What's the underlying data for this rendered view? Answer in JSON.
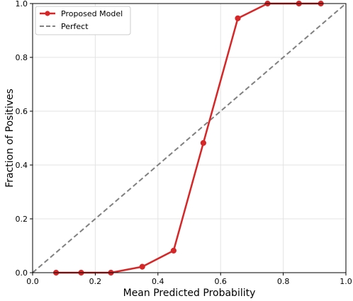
{
  "chart_data": {
    "type": "line",
    "xlabel": "Mean Predicted Probability",
    "ylabel": "Fraction of Positives",
    "xlim": [
      0.0,
      1.0
    ],
    "ylim": [
      0.0,
      1.0
    ],
    "xticks": [
      "0.0",
      "0.2",
      "0.4",
      "0.6",
      "0.8",
      "1.0"
    ],
    "yticks": [
      "0.0",
      "0.2",
      "0.4",
      "0.6",
      "0.8",
      "1.0"
    ],
    "grid": true,
    "legend_position": "top-left",
    "series": [
      {
        "name": "Proposed Model",
        "color": "#d62728",
        "style": "solid",
        "marker": "circle",
        "x": [
          0.075,
          0.155,
          0.25,
          0.35,
          0.45,
          0.545,
          0.655,
          0.75,
          0.85,
          0.92
        ],
        "y": [
          0.0,
          0.0,
          0.0,
          0.022,
          0.082,
          0.482,
          0.945,
          1.0,
          1.0,
          1.0
        ]
      },
      {
        "name": "Perfect",
        "color": "#808080",
        "style": "dashed",
        "marker": "none",
        "x": [
          0.0,
          1.0
        ],
        "y": [
          0.0,
          1.0
        ]
      }
    ]
  }
}
